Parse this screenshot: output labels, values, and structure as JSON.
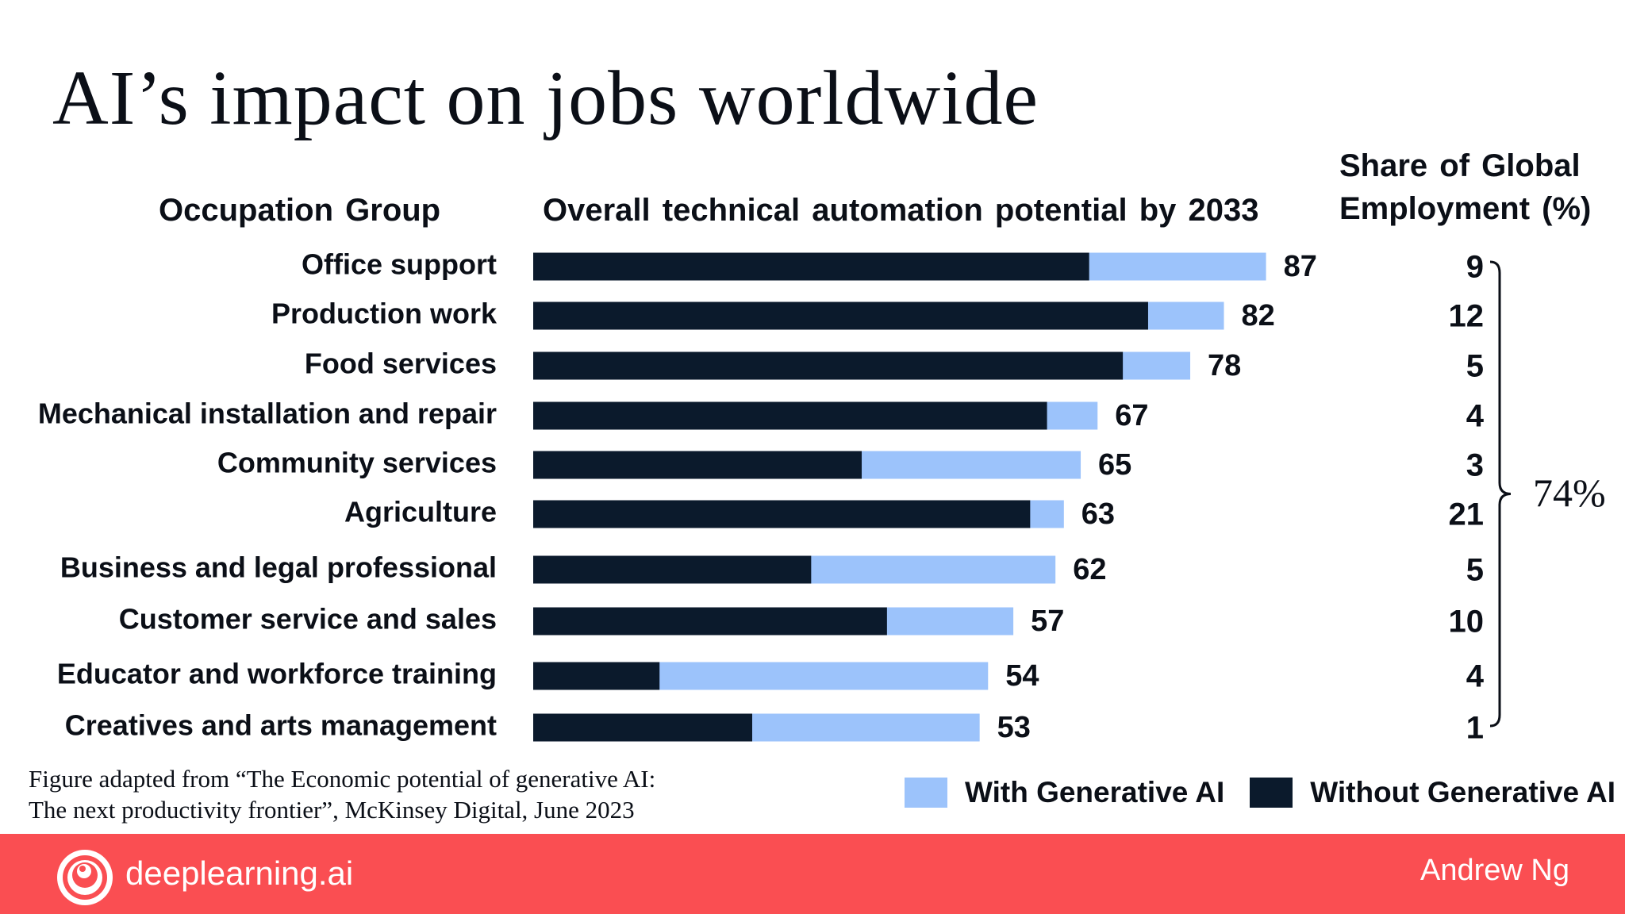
{
  "title": "AI’s impact on jobs worldwide",
  "headers": {
    "occupation": "Occupation Group",
    "automation": "Overall technical automation potential by 2033",
    "share_line1": "Share of Global",
    "share_line2": "Employment (%)"
  },
  "colors": {
    "with_gen_ai": "#9cc3fb",
    "without_gen_ai": "#0b1a2c",
    "footer": "#fa4e52",
    "text": "#0b0f17"
  },
  "chart_data": {
    "type": "bar",
    "orientation": "horizontal",
    "stacked": false,
    "categories": [
      "Office support",
      "Production work",
      "Food services",
      "Mechanical installation and repair",
      "Community services",
      "Agriculture",
      "Business and legal professional",
      "Customer service and sales",
      "Educator and workforce training",
      "Creatives and arts management"
    ],
    "series": [
      {
        "name": "With Generative AI",
        "values": [
          87,
          82,
          78,
          67,
          65,
          63,
          62,
          57,
          54,
          53
        ]
      },
      {
        "name": "Without Generative AI",
        "values": [
          66,
          73,
          70,
          61,
          39,
          59,
          33,
          42,
          15,
          26
        ]
      }
    ],
    "value_labels": [
      "87",
      "82",
      "78",
      "67",
      "65",
      "63",
      "62",
      "57",
      "54",
      "53"
    ],
    "share_of_global_employment": [
      "9",
      "12",
      "5",
      "4",
      "3",
      "21",
      "5",
      "10",
      "4",
      "1"
    ],
    "share_total_label": "74%",
    "title": "AI’s impact on jobs worldwide",
    "xlabel": "Overall technical automation potential by 2033",
    "ylabel": "Occupation Group",
    "xlim": [
      0,
      100
    ],
    "grid": false,
    "legend_position": "bottom-right"
  },
  "source_line1": "Figure adapted from “The Economic potential of generative AI:",
  "source_line2": "The next productivity frontier”, McKinsey Digital, June 2023",
  "legend": {
    "with_label": "With Generative AI",
    "without_label": "Without Generative AI"
  },
  "footer": {
    "brand": "deeplearning.ai",
    "author": "Andrew Ng",
    "logo_icon": "deeplearning-logo-icon"
  }
}
